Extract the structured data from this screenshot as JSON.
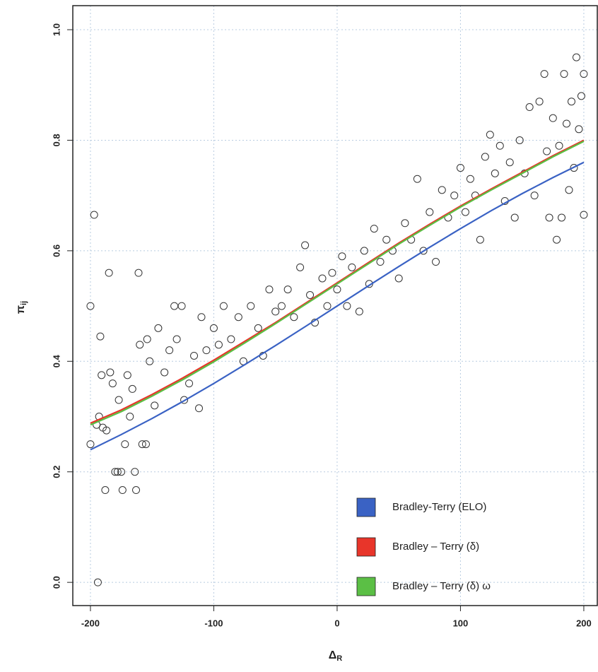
{
  "chart_data": {
    "type": "scatter",
    "xlabel": {
      "text": "Δ",
      "sub": "R"
    },
    "ylabel": {
      "text": "π",
      "sub": "ij"
    },
    "xlim": [
      -214.3,
      211.5
    ],
    "ylim": [
      -0.042,
      1.0435
    ],
    "xticks": [
      -200,
      -100,
      0,
      100,
      200
    ],
    "yticks": [
      {
        "value": 0,
        "label": "0.0"
      },
      0.2,
      0.4,
      0.6,
      0.8,
      {
        "value": 1,
        "label": "1.0"
      }
    ],
    "grid": true,
    "legend_position": "bottom-right",
    "points": {
      "color": "#333333",
      "x": [
        -200,
        -200,
        -197,
        -195,
        -194,
        -193,
        -192,
        -191,
        -190,
        -188,
        -187,
        -185,
        -184,
        -182,
        -180,
        -178,
        -177,
        -175,
        -174,
        -172,
        -170,
        -168,
        -166,
        -164,
        -163,
        -161,
        -160,
        -158,
        -155,
        -154,
        -152,
        -148,
        -145,
        -140,
        -136,
        -132,
        -130,
        -126,
        -124,
        -120,
        -116,
        -112,
        -110,
        -106,
        -100,
        -96,
        -92,
        -86,
        -80,
        -76,
        -70,
        -64,
        -60,
        -55,
        -50,
        -45,
        -40,
        -35,
        -30,
        -26,
        -22,
        -18,
        -12,
        -8,
        -4,
        0,
        4,
        8,
        12,
        18,
        22,
        26,
        30,
        35,
        40,
        45,
        50,
        55,
        60,
        65,
        70,
        75,
        80,
        85,
        90,
        95,
        100,
        104,
        108,
        112,
        116,
        120,
        124,
        128,
        132,
        136,
        140,
        144,
        148,
        152,
        156,
        160,
        164,
        168,
        170,
        172,
        175,
        178,
        180,
        182,
        184,
        186,
        188,
        190,
        192,
        194,
        196,
        198,
        200,
        200
      ],
      "y": [
        0.25,
        0.5,
        0.665,
        0.285,
        0.0,
        0.3,
        0.445,
        0.375,
        0.28,
        0.167,
        0.275,
        0.56,
        0.38,
        0.36,
        0.2,
        0.2,
        0.33,
        0.2,
        0.167,
        0.25,
        0.375,
        0.3,
        0.35,
        0.2,
        0.167,
        0.56,
        0.43,
        0.25,
        0.25,
        0.44,
        0.4,
        0.32,
        0.46,
        0.38,
        0.42,
        0.5,
        0.44,
        0.5,
        0.33,
        0.36,
        0.41,
        0.315,
        0.48,
        0.42,
        0.46,
        0.43,
        0.5,
        0.44,
        0.48,
        0.4,
        0.5,
        0.46,
        0.41,
        0.53,
        0.49,
        0.5,
        0.53,
        0.48,
        0.57,
        0.61,
        0.52,
        0.47,
        0.55,
        0.5,
        0.56,
        0.53,
        0.59,
        0.5,
        0.57,
        0.49,
        0.6,
        0.54,
        0.64,
        0.58,
        0.62,
        0.6,
        0.55,
        0.65,
        0.62,
        0.73,
        0.6,
        0.67,
        0.58,
        0.71,
        0.66,
        0.7,
        0.75,
        0.67,
        0.73,
        0.7,
        0.62,
        0.77,
        0.81,
        0.74,
        0.79,
        0.69,
        0.76,
        0.66,
        0.8,
        0.74,
        0.86,
        0.7,
        0.87,
        0.92,
        0.78,
        0.66,
        0.84,
        0.62,
        0.79,
        0.66,
        0.92,
        0.83,
        0.71,
        0.87,
        0.75,
        0.95,
        0.82,
        0.88,
        0.92,
        0.665
      ]
    },
    "series": [
      {
        "name": "Bradley-Terry (ELO)",
        "color": "#3a62c4",
        "x": [
          -200,
          -175,
          -150,
          -125,
          -100,
          -75,
          -50,
          -25,
          0,
          25,
          50,
          75,
          100,
          125,
          150,
          175,
          200
        ],
        "values": [
          0.24,
          0.2675,
          0.2966,
          0.3274,
          0.3599,
          0.3937,
          0.4285,
          0.464,
          0.5,
          0.536,
          0.5715,
          0.6063,
          0.6401,
          0.6726,
          0.7034,
          0.7325,
          0.76
        ]
      },
      {
        "name": "Bradley – Terry (δ)",
        "color": "#e8352a",
        "x": [
          -200,
          -175,
          -150,
          -125,
          -100,
          -75,
          -50,
          -25,
          0,
          25,
          50,
          75,
          100,
          125,
          150,
          175,
          200
        ],
        "values": [
          0.288,
          0.312,
          0.34,
          0.37,
          0.402,
          0.436,
          0.47,
          0.506,
          0.542,
          0.578,
          0.614,
          0.648,
          0.681,
          0.712,
          0.742,
          0.772,
          0.8
        ]
      },
      {
        "name": "Bradley – Terry (δ) ω",
        "color": "#5bbf45",
        "x": [
          -200,
          -175,
          -150,
          -125,
          -100,
          -75,
          -50,
          -25,
          0,
          25,
          50,
          75,
          100,
          125,
          150,
          175,
          200
        ],
        "values": [
          0.285,
          0.309,
          0.337,
          0.367,
          0.399,
          0.433,
          0.468,
          0.504,
          0.54,
          0.576,
          0.612,
          0.646,
          0.679,
          0.71,
          0.74,
          0.77,
          0.798
        ]
      }
    ]
  }
}
